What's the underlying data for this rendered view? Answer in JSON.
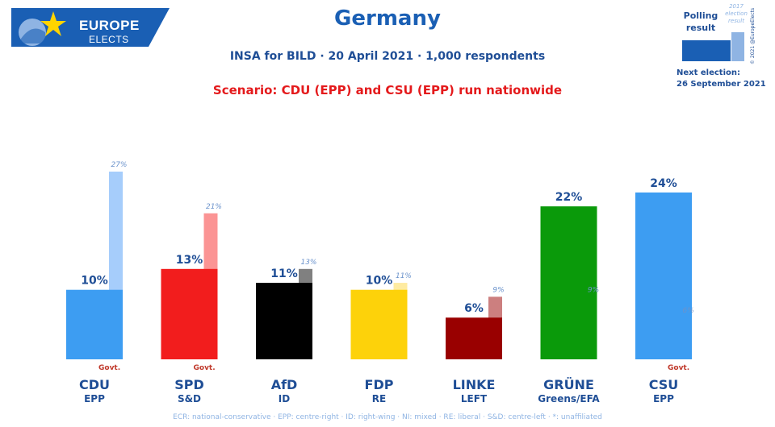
{
  "logo": {
    "line1": "EUROPE",
    "line2": "ELECTS"
  },
  "title": "Germany",
  "subtitle": "INSA for BILD · 20 April 2021 · 1,000 respondents",
  "scenario": "Scenario: CDU (EPP) and CSU (EPP) run nationwide",
  "legend": {
    "polling_result": "Polling result",
    "election_2017": "2017 election result",
    "copyright": "© 2021 @EuropeElects",
    "next_election_label": "Next election:",
    "next_election_date": "26 September 2021"
  },
  "govt_label": "Govt.",
  "footnote": "ECR: national-conservative · EPP: centre-right · ID: right-wing · NI: mixed · RE: liberal · S&D: centre-left · *: unaffiliated",
  "colors": {
    "brand": "#1a5fb4",
    "scenario": "#e41a1c"
  },
  "chart_data": {
    "type": "bar",
    "categories": [
      "CDU",
      "SPD",
      "AfD",
      "FDP",
      "LINKE",
      "GRÜNE",
      "CSU"
    ],
    "groups": [
      "EPP",
      "S&D",
      "ID",
      "RE",
      "LEFT",
      "Greens/EFA",
      "EPP"
    ],
    "govt": [
      true,
      true,
      false,
      false,
      false,
      false,
      true
    ],
    "series": [
      {
        "values": [
          10,
          13,
          11,
          10,
          6,
          22,
          24
        ],
        "labels": [
          "10%",
          "13%",
          "11%",
          "10%",
          "6%",
          "22%",
          "24%"
        ]
      },
      {
        "values": [
          27,
          21,
          13,
          11,
          9,
          9,
          6
        ],
        "labels": [
          "27%",
          "21%",
          "13%",
          "11%",
          "9%",
          "9%",
          "6%"
        ]
      }
    ],
    "colors": {
      "current": [
        "#3d9df2",
        "#f21d1d",
        "#000000",
        "#fdd20a",
        "#990000",
        "#0a9a0a",
        "#3d9df2"
      ],
      "previous": [
        "#a6cdfb",
        "#fb9494",
        "#808080",
        "#feeba1",
        "#cc7f7f",
        "#97cd97",
        "#a6cdfb"
      ]
    },
    "ylim": [
      0,
      28
    ]
  }
}
